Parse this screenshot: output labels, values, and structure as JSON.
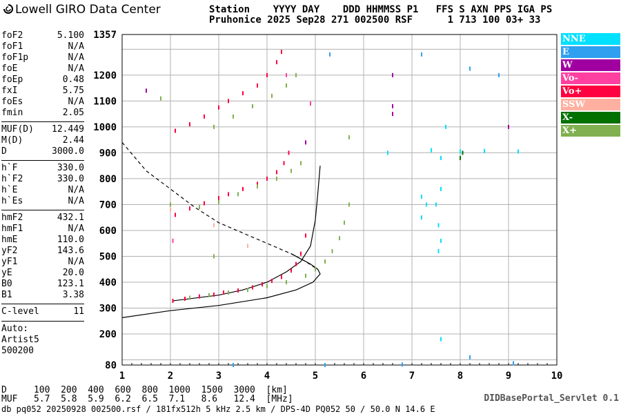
{
  "header": {
    "logo_text": "Lowell GIRO Data Center",
    "line1": "Station    YYYY DAY    DDD HHMMSS P1   FFS S AXN PPS IGA PS",
    "line2": "Pruhonice 2025 Sep28 271 002500 RSF      1 713 100 03+ 33"
  },
  "params": [
    {
      "name": "foF2",
      "value": "5.100"
    },
    {
      "name": "foF1",
      "value": "N/A"
    },
    {
      "name": "foF1p",
      "value": "N/A"
    },
    {
      "name": "foE",
      "value": "N/A"
    },
    {
      "name": "foEp",
      "value": "0.48"
    },
    {
      "name": "fxI",
      "value": "5.75"
    },
    {
      "name": "foEs",
      "value": "N/A"
    },
    {
      "name": "fmin",
      "value": "2.05"
    },
    {
      "name": "MUF(D)",
      "value": "12.449"
    },
    {
      "name": "M(D)",
      "value": "2.44"
    },
    {
      "name": "D",
      "value": "3000.0"
    },
    {
      "name": "h`F",
      "value": "330.0"
    },
    {
      "name": "h`F2",
      "value": "330.0"
    },
    {
      "name": "h`E",
      "value": "N/A"
    },
    {
      "name": "h`Es",
      "value": "N/A"
    },
    {
      "name": "hmF2",
      "value": "432.1"
    },
    {
      "name": "hmF1",
      "value": "N/A"
    },
    {
      "name": "hmE",
      "value": "110.0"
    },
    {
      "name": "yF2",
      "value": "143.6"
    },
    {
      "name": "yF1",
      "value": "N/A"
    },
    {
      "name": "yE",
      "value": "20.0"
    },
    {
      "name": "B0",
      "value": "123.1"
    },
    {
      "name": "B1",
      "value": "3.38"
    },
    {
      "name": "C-level",
      "value": "11"
    }
  ],
  "autoscaling": {
    "line1": "Auto:",
    "line2": "Artist5",
    "line3": "500200"
  },
  "legend": [
    {
      "label": "NNE",
      "color": "#00e0ff"
    },
    {
      "label": "E",
      "color": "#2fa0f0"
    },
    {
      "label": "W",
      "color": "#a000a0"
    },
    {
      "label": "Vo-",
      "color": "#ff40a0"
    },
    {
      "label": "Vo+",
      "color": "#ff0040"
    },
    {
      "label": "SSW",
      "color": "#ffb0a0"
    },
    {
      "label": "X-",
      "color": "#007000"
    },
    {
      "label": "X+",
      "color": "#80b050"
    }
  ],
  "muf_table": {
    "d_line": "D     100  200  400  600  800  1000  1500  3000  [km]",
    "muf_line": "MUF   5.7  5.8  5.9  6.2  6.5  7.1   8.6   12.4  [MHz]"
  },
  "servlet": "DIDBasePortal_Servlet 0.1",
  "footer": "db pq052 20250928 002500.rsf / 181fx512h 5 kHz 2.5 km / DPS-4D PQ052 50 / 50.0 N 14.6 E",
  "chart_data": {
    "type": "scatter",
    "xlim": [
      1,
      10
    ],
    "ylim": [
      80,
      1357
    ],
    "x_ticks": [
      1,
      2,
      3,
      4,
      5,
      6,
      7,
      8,
      9,
      10
    ],
    "y_ticks": [
      80,
      200,
      300,
      400,
      500,
      600,
      700,
      800,
      900,
      1000,
      1100,
      1200,
      1357
    ],
    "grid": true,
    "series": [
      {
        "name": "Vo+",
        "color": "#ff0040",
        "points": [
          [
            2.05,
            328
          ],
          [
            2.3,
            336
          ],
          [
            2.6,
            345
          ],
          [
            2.9,
            352
          ],
          [
            3.1,
            360
          ],
          [
            3.4,
            368
          ],
          [
            3.7,
            380
          ],
          [
            3.9,
            392
          ],
          [
            4.1,
            405
          ],
          [
            4.3,
            420
          ],
          [
            4.5,
            445
          ],
          [
            4.6,
            470
          ],
          [
            4.7,
            510
          ],
          [
            4.8,
            580
          ],
          [
            2.1,
            660
          ],
          [
            2.4,
            685
          ],
          [
            2.7,
            705
          ],
          [
            3.0,
            725
          ],
          [
            3.2,
            740
          ],
          [
            3.5,
            760
          ],
          [
            3.8,
            780
          ],
          [
            4.0,
            800
          ],
          [
            4.2,
            825
          ],
          [
            4.35,
            860
          ],
          [
            4.45,
            900
          ],
          [
            2.1,
            985
          ],
          [
            2.4,
            1010
          ],
          [
            2.7,
            1040
          ],
          [
            3.0,
            1075
          ],
          [
            3.2,
            1100
          ],
          [
            3.5,
            1130
          ],
          [
            3.8,
            1160
          ],
          [
            4.0,
            1200
          ],
          [
            4.2,
            1250
          ],
          [
            4.3,
            1290
          ]
        ]
      },
      {
        "name": "X+",
        "color": "#80b050",
        "points": [
          [
            2.4,
            340
          ],
          [
            2.8,
            350
          ],
          [
            3.2,
            360
          ],
          [
            3.6,
            370
          ],
          [
            4.0,
            385
          ],
          [
            4.4,
            400
          ],
          [
            4.8,
            425
          ],
          [
            5.0,
            450
          ],
          [
            5.2,
            480
          ],
          [
            5.35,
            520
          ],
          [
            5.5,
            570
          ],
          [
            5.6,
            630
          ],
          [
            5.7,
            700
          ],
          [
            2.6,
            690
          ],
          [
            3.0,
            710
          ],
          [
            3.4,
            740
          ],
          [
            3.8,
            770
          ],
          [
            4.2,
            800
          ],
          [
            4.5,
            830
          ],
          [
            4.7,
            860
          ],
          [
            2.9,
            1000
          ],
          [
            3.3,
            1040
          ],
          [
            3.7,
            1080
          ],
          [
            4.1,
            1120
          ],
          [
            4.4,
            1160
          ],
          [
            4.6,
            1200
          ],
          [
            1.8,
            1110
          ],
          [
            2.0,
            700
          ],
          [
            2.9,
            500
          ],
          [
            5.7,
            960
          ]
        ]
      },
      {
        "name": "NNE",
        "color": "#00e0ff",
        "points": [
          [
            7.2,
            730
          ],
          [
            7.2,
            650
          ],
          [
            7.5,
            700
          ],
          [
            7.55,
            620
          ],
          [
            7.6,
            560
          ],
          [
            7.6,
            760
          ],
          [
            7.55,
            520
          ],
          [
            7.6,
            180
          ],
          [
            7.3,
            700
          ],
          [
            7.7,
            1000
          ],
          [
            6.5,
            900
          ],
          [
            7.4,
            910
          ],
          [
            7.6,
            880
          ],
          [
            8.0,
            905
          ],
          [
            8.5,
            907
          ],
          [
            9.2,
            905
          ]
        ]
      },
      {
        "name": "E",
        "color": "#2fa0f0",
        "points": [
          [
            5.3,
            1280
          ],
          [
            7.2,
            1280
          ],
          [
            8.2,
            1225
          ],
          [
            8.8,
            1200
          ],
          [
            5.2,
            80
          ],
          [
            6.8,
            82
          ],
          [
            9.1,
            87
          ],
          [
            8.2,
            110
          ],
          [
            3.3,
            80
          ]
        ]
      },
      {
        "name": "W",
        "color": "#a000a0",
        "points": [
          [
            6.6,
            1200
          ],
          [
            6.6,
            1080
          ],
          [
            6.6,
            1050
          ],
          [
            9.0,
            1000
          ],
          [
            4.8,
            940
          ],
          [
            1.5,
            1140
          ]
        ]
      },
      {
        "name": "Vo-",
        "color": "#ff40a0",
        "points": [
          [
            4.9,
            1090
          ],
          [
            2.05,
            560
          ],
          [
            4.4,
            1200
          ]
        ]
      },
      {
        "name": "SSW",
        "color": "#ffb0a0",
        "points": [
          [
            2.9,
            620
          ],
          [
            2.0,
            680
          ],
          [
            3.6,
            540
          ]
        ]
      },
      {
        "name": "X-",
        "color": "#007000",
        "points": [
          [
            8.05,
            900
          ],
          [
            8.0,
            880
          ]
        ]
      }
    ],
    "curves": [
      {
        "style": "solid",
        "points": [
          [
            2.05,
            328
          ],
          [
            3.0,
            350
          ],
          [
            3.5,
            370
          ],
          [
            4.0,
            400
          ],
          [
            4.4,
            440
          ],
          [
            4.7,
            480
          ],
          [
            4.9,
            540
          ],
          [
            5.0,
            640
          ],
          [
            5.05,
            740
          ],
          [
            5.1,
            850
          ]
        ]
      },
      {
        "style": "solid",
        "points": [
          [
            1.0,
            263
          ],
          [
            2.0,
            290
          ],
          [
            3.0,
            310
          ],
          [
            4.0,
            340
          ],
          [
            4.6,
            370
          ],
          [
            4.95,
            400
          ],
          [
            5.1,
            432
          ],
          [
            5.05,
            450
          ],
          [
            4.9,
            470
          ],
          [
            4.7,
            490
          ],
          [
            4.5,
            510
          ]
        ]
      },
      {
        "style": "dashed",
        "points": [
          [
            1.0,
            940
          ],
          [
            1.5,
            830
          ],
          [
            2.0,
            760
          ],
          [
            2.5,
            690
          ],
          [
            3.0,
            630
          ],
          [
            3.5,
            590
          ],
          [
            4.0,
            550
          ],
          [
            4.5,
            510
          ],
          [
            4.8,
            480
          ],
          [
            5.0,
            455
          ]
        ]
      }
    ]
  }
}
